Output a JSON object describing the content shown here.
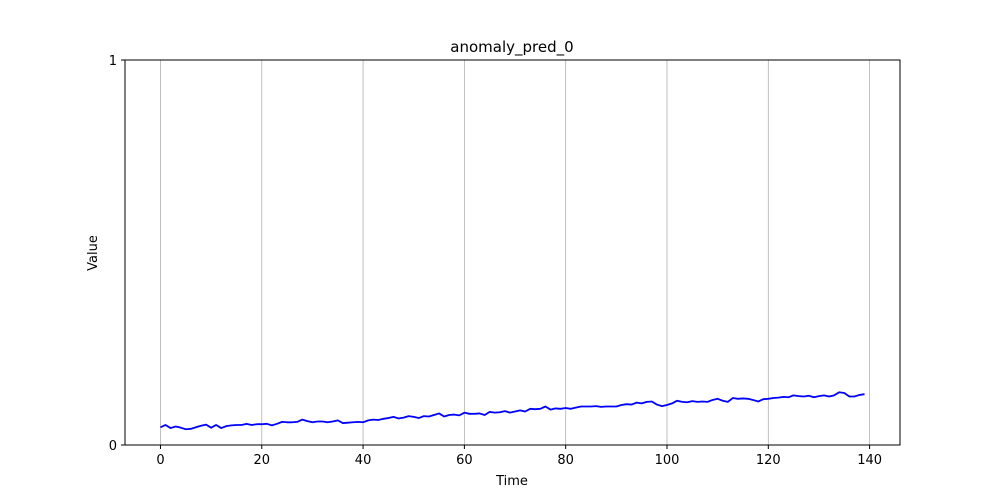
{
  "chart_data": {
    "type": "line",
    "title": "anomaly_pred_0",
    "xlabel": "Time",
    "ylabel": "Value",
    "xlim": [
      -7,
      146
    ],
    "ylim": [
      0,
      1
    ],
    "xticks": [
      0,
      20,
      40,
      60,
      80,
      100,
      120,
      140
    ],
    "yticks": [
      0,
      1
    ],
    "grid": {
      "x": true,
      "y": false
    },
    "series": [
      {
        "color": "#0000ff",
        "x": [
          0,
          1,
          2,
          3,
          4,
          5,
          6,
          7,
          8,
          9,
          10,
          11,
          12,
          13,
          14,
          15,
          16,
          17,
          18,
          19,
          20,
          21,
          22,
          23,
          24,
          25,
          26,
          27,
          28,
          29,
          30,
          31,
          32,
          33,
          34,
          35,
          36,
          37,
          38,
          39,
          40,
          41,
          42,
          43,
          44,
          45,
          46,
          47,
          48,
          49,
          50,
          51,
          52,
          53,
          54,
          55,
          56,
          57,
          58,
          59,
          60,
          61,
          62,
          63,
          64,
          65,
          66,
          67,
          68,
          69,
          70,
          71,
          72,
          73,
          74,
          75,
          76,
          77,
          78,
          79,
          80,
          81,
          82,
          83,
          84,
          85,
          86,
          87,
          88,
          89,
          90,
          91,
          92,
          93,
          94,
          95,
          96,
          97,
          98,
          99,
          100,
          101,
          102,
          103,
          104,
          105,
          106,
          107,
          108,
          109,
          110,
          111,
          112,
          113,
          114,
          115,
          116,
          117,
          118,
          119,
          120,
          121,
          122,
          123,
          124,
          125,
          126,
          127,
          128,
          129,
          130,
          131,
          132,
          133,
          134,
          135,
          136,
          137,
          138,
          139
        ],
        "values": [
          0.046,
          0.052,
          0.044,
          0.048,
          0.045,
          0.041,
          0.042,
          0.046,
          0.05,
          0.053,
          0.045,
          0.052,
          0.044,
          0.049,
          0.051,
          0.052,
          0.052,
          0.055,
          0.052,
          0.054,
          0.054,
          0.055,
          0.051,
          0.055,
          0.06,
          0.059,
          0.059,
          0.06,
          0.066,
          0.062,
          0.059,
          0.061,
          0.061,
          0.059,
          0.061,
          0.064,
          0.057,
          0.058,
          0.059,
          0.06,
          0.059,
          0.064,
          0.066,
          0.065,
          0.068,
          0.07,
          0.073,
          0.069,
          0.071,
          0.075,
          0.073,
          0.07,
          0.075,
          0.074,
          0.078,
          0.082,
          0.074,
          0.078,
          0.079,
          0.077,
          0.084,
          0.081,
          0.081,
          0.082,
          0.078,
          0.086,
          0.084,
          0.085,
          0.088,
          0.084,
          0.087,
          0.09,
          0.087,
          0.094,
          0.093,
          0.094,
          0.1,
          0.092,
          0.095,
          0.094,
          0.096,
          0.094,
          0.097,
          0.1,
          0.1,
          0.1,
          0.101,
          0.099,
          0.1,
          0.1,
          0.1,
          0.104,
          0.106,
          0.105,
          0.11,
          0.108,
          0.112,
          0.113,
          0.105,
          0.101,
          0.104,
          0.108,
          0.115,
          0.112,
          0.111,
          0.114,
          0.112,
          0.113,
          0.112,
          0.117,
          0.12,
          0.115,
          0.112,
          0.122,
          0.12,
          0.121,
          0.12,
          0.117,
          0.113,
          0.119,
          0.12,
          0.122,
          0.123,
          0.125,
          0.124,
          0.129,
          0.127,
          0.126,
          0.128,
          0.124,
          0.127,
          0.129,
          0.126,
          0.129,
          0.137,
          0.135,
          0.126,
          0.126,
          0.13,
          0.132
        ]
      }
    ]
  }
}
